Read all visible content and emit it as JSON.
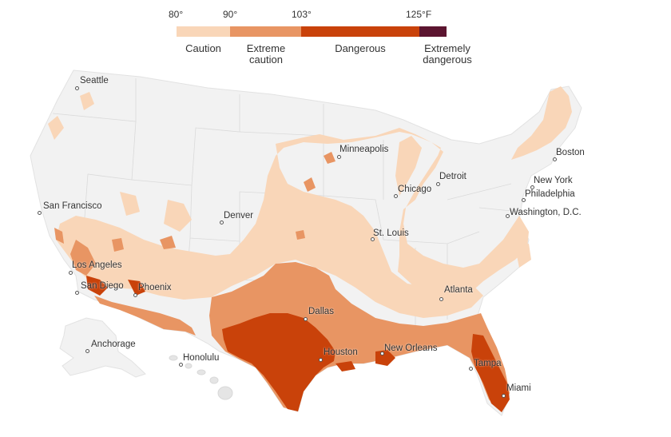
{
  "legend": {
    "ticks": [
      "80°",
      "90°",
      "103°",
      "125°F"
    ],
    "categories": [
      {
        "label": "Caution",
        "color": "#f9d6b8"
      },
      {
        "label": "Extreme\ncaution",
        "color": "#e89563"
      },
      {
        "label": "Dangerous",
        "color": "#c9420a"
      },
      {
        "label": "Extremely\ndangerous",
        "color": "#5c1530"
      }
    ]
  },
  "colors": {
    "land": "#f2f2f2",
    "borders": "#d6d6d6",
    "caution": "#f9d6b8",
    "extreme_caution": "#e89563",
    "dangerous": "#c9420a",
    "extremely_dangerous": "#5c1530"
  },
  "cities": {
    "seattle": "Seattle",
    "san_francisco": "San Francisco",
    "los_angeles": "Los Angeles",
    "san_diego": "San Diego",
    "phoenix": "Phoenix",
    "denver": "Denver",
    "minneapolis": "Minneapolis",
    "chicago": "Chicago",
    "detroit": "Detroit",
    "st_louis": "St. Louis",
    "dallas": "Dallas",
    "houston": "Houston",
    "new_orleans": "New Orleans",
    "atlanta": "Atlanta",
    "tampa": "Tampa",
    "miami": "Miami",
    "boston": "Boston",
    "new_york": "New York",
    "philadelphia": "Philadelphia",
    "washington": "Washington, D.C.",
    "anchorage": "Anchorage",
    "honolulu": "Honolulu"
  }
}
